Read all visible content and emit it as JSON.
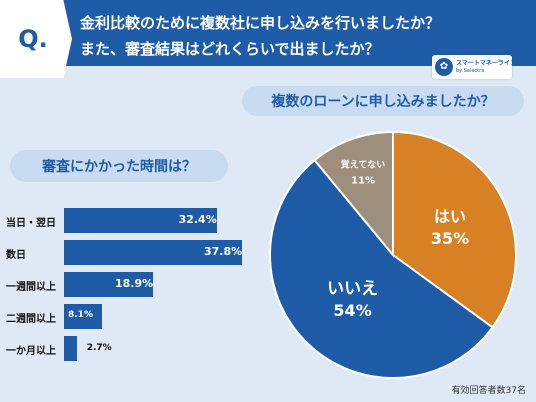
{
  "header": {
    "badge": "Q.",
    "line1": "金利比較のために複数社に申し込みを行いましたか？",
    "line2": "また、審査結果はどれくらいで出ましたか？"
  },
  "logo": {
    "name": "スマートマネーライフ",
    "sub": "by Selectra"
  },
  "colors": {
    "primary": "#1f5ca8",
    "yes": "#d88024",
    "unsure": "#9e8e7c",
    "background": "#dfe9f6"
  },
  "footnote": "有効回答者数37名",
  "chart_data": [
    {
      "type": "bar",
      "orientation": "horizontal",
      "title": "審査にかかった時間は？",
      "categories": [
        "当日・翌日",
        "数日",
        "一週間以上",
        "二週間以上",
        "一か月以上"
      ],
      "values": [
        32.4,
        37.8,
        18.9,
        8.1,
        2.7
      ],
      "value_labels": [
        "32.4%",
        "37.8%",
        "18.9%",
        "8.1%",
        "2.7%"
      ],
      "unit": "%",
      "xlim": [
        0,
        40
      ]
    },
    {
      "type": "pie",
      "title": "複数のローンに申し込みましたか？",
      "labels": [
        "はい",
        "いいえ",
        "覚えてない"
      ],
      "values": [
        35,
        54,
        11
      ],
      "value_labels": [
        "35%",
        "54%",
        "11%"
      ],
      "colors": [
        "#d88024",
        "#1f5ca8",
        "#9e8e7c"
      ]
    }
  ]
}
